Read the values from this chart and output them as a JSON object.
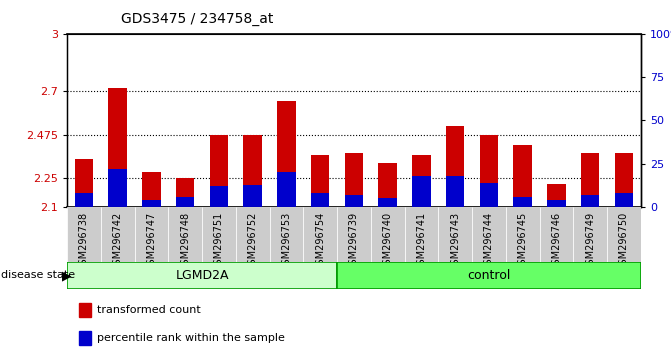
{
  "title": "GDS3475 / 234758_at",
  "samples": [
    "GSM296738",
    "GSM296742",
    "GSM296747",
    "GSM296748",
    "GSM296751",
    "GSM296752",
    "GSM296753",
    "GSM296754",
    "GSM296739",
    "GSM296740",
    "GSM296741",
    "GSM296743",
    "GSM296744",
    "GSM296745",
    "GSM296746",
    "GSM296749",
    "GSM296750"
  ],
  "red_values": [
    2.35,
    2.72,
    2.28,
    2.25,
    2.475,
    2.475,
    2.65,
    2.37,
    2.38,
    2.33,
    2.37,
    2.52,
    2.475,
    2.42,
    2.22,
    2.38,
    2.38
  ],
  "blue_percentiles": [
    8,
    22,
    4,
    6,
    12,
    13,
    20,
    8,
    7,
    5,
    18,
    18,
    14,
    6,
    4,
    7,
    8
  ],
  "lgmd2a_count": 8,
  "ymin": 2.1,
  "ymax": 3.0,
  "yticks": [
    2.1,
    2.25,
    2.475,
    2.7,
    3.0
  ],
  "ytick_labels": [
    "2.1",
    "2.25",
    "2.475",
    "2.7",
    "3"
  ],
  "right_yticks": [
    0,
    25,
    50,
    75,
    100
  ],
  "right_ytick_labels": [
    "0",
    "25",
    "50",
    "75",
    "100%"
  ],
  "dotted_lines": [
    2.25,
    2.475,
    2.7
  ],
  "bar_width": 0.55,
  "red_color": "#cc0000",
  "blue_color": "#0000cc",
  "lgmd2a_color": "#ccffcc",
  "control_color": "#66ff66",
  "group_border_color": "#009900",
  "tick_label_color_left": "#cc0000",
  "tick_label_color_right": "#0000cc",
  "xtick_bg_color": "#cccccc",
  "background_color": "#ffffff"
}
